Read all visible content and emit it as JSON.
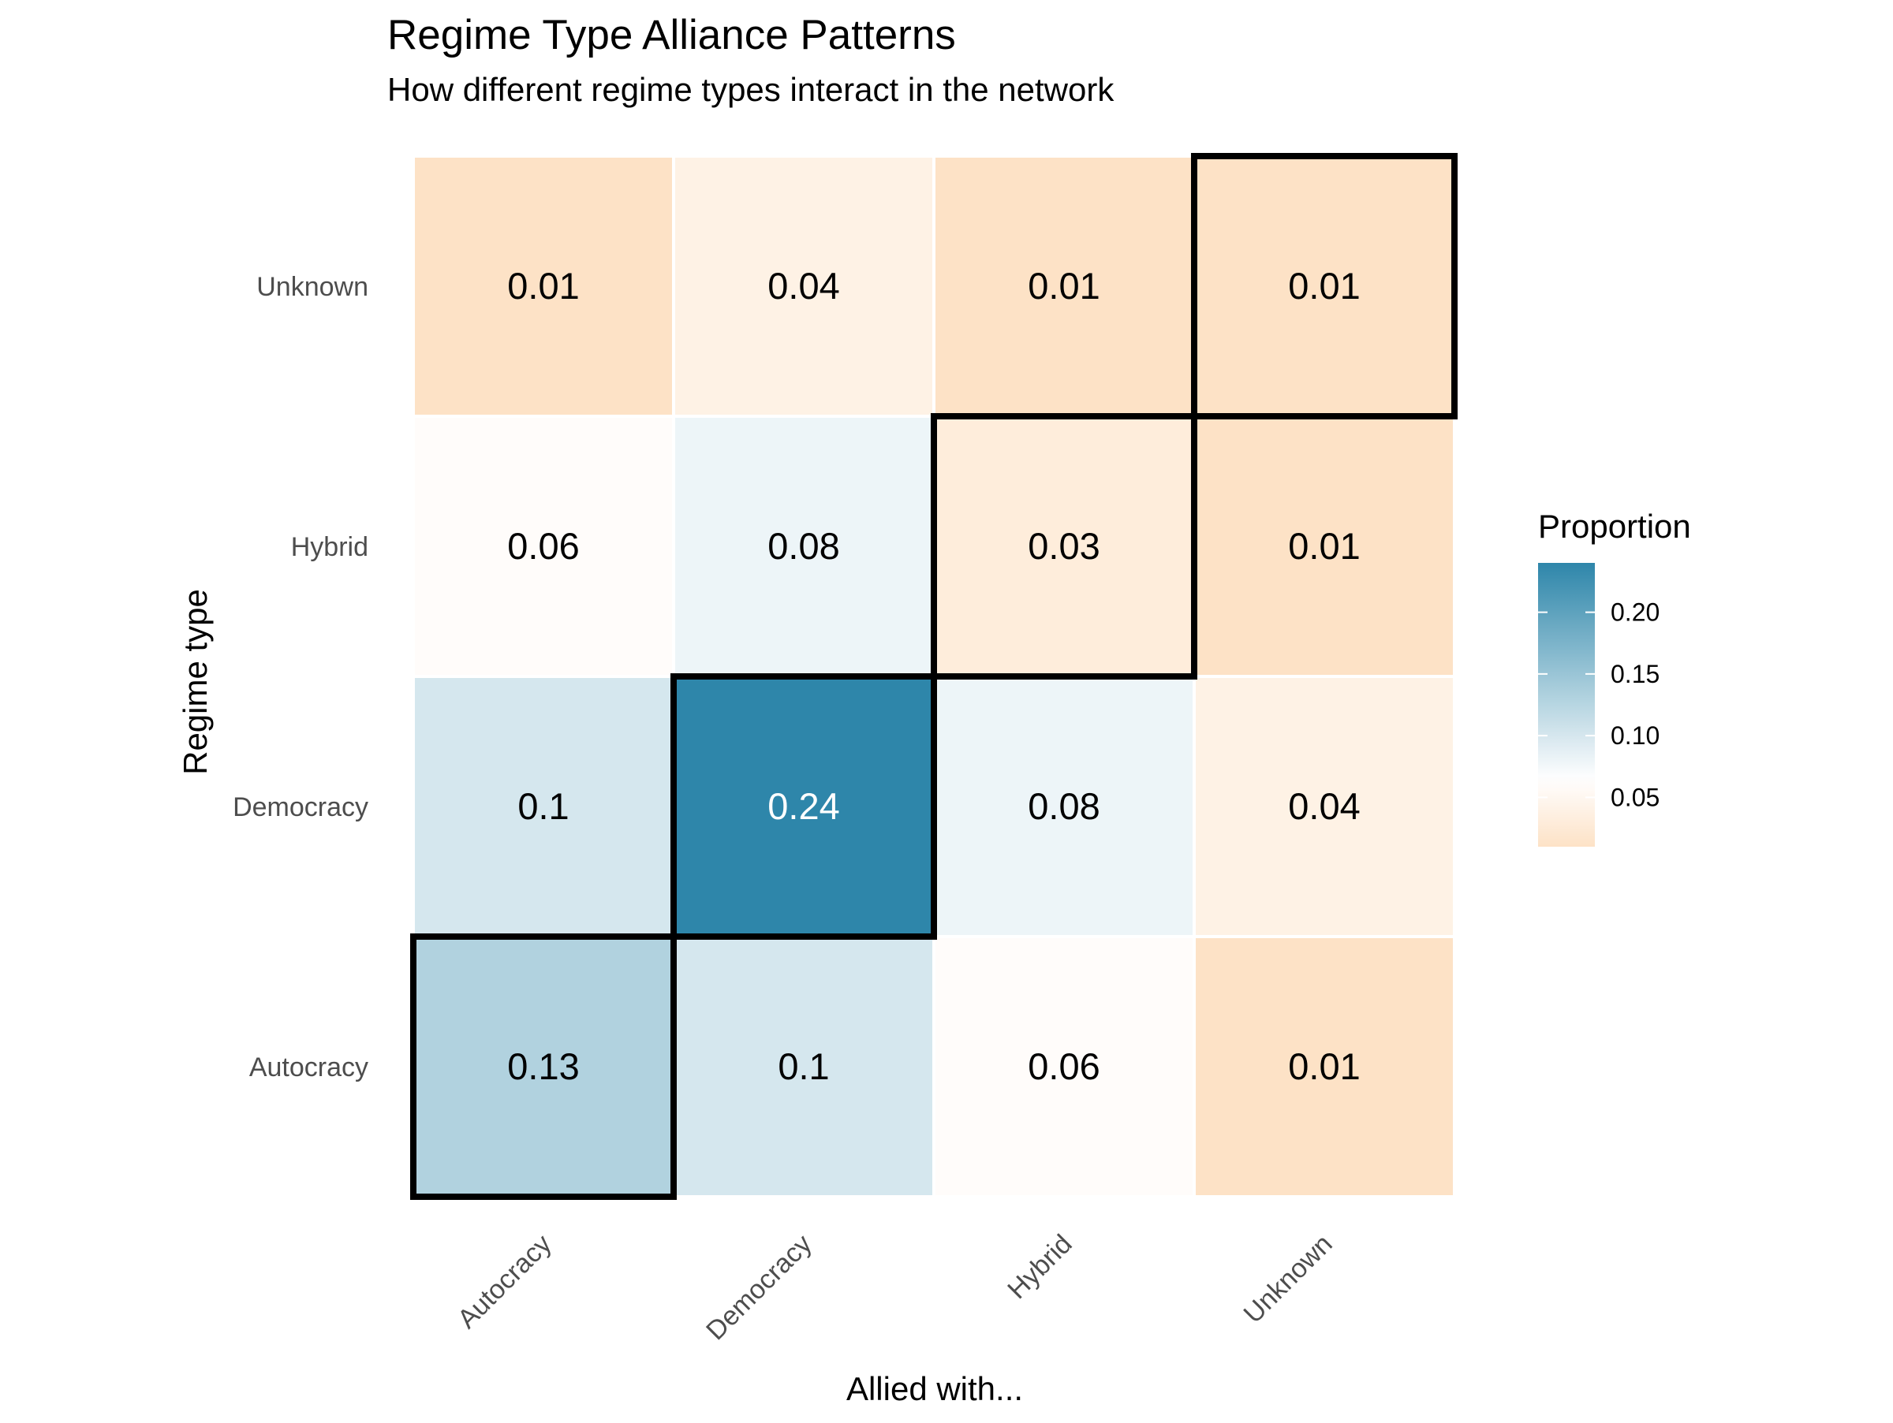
{
  "chart_data": {
    "type": "heatmap",
    "title": "Regime Type Alliance Patterns",
    "subtitle": "How different regime types interact in the network",
    "xlabel": "Allied with...",
    "ylabel": "Regime type",
    "x_categories": [
      "Autocracy",
      "Democracy",
      "Hybrid",
      "Unknown"
    ],
    "y_categories": [
      "Autocracy",
      "Democracy",
      "Hybrid",
      "Unknown"
    ],
    "values": [
      [
        0.13,
        0.1,
        0.06,
        0.01
      ],
      [
        0.1,
        0.24,
        0.08,
        0.04
      ],
      [
        0.06,
        0.08,
        0.03,
        0.01
      ],
      [
        0.01,
        0.04,
        0.01,
        0.01
      ]
    ],
    "value_labels": [
      [
        "0.13",
        "0.1",
        "0.06",
        "0.01"
      ],
      [
        "0.1",
        "0.24",
        "0.08",
        "0.04"
      ],
      [
        "0.06",
        "0.08",
        "0.03",
        "0.01"
      ],
      [
        "0.01",
        "0.04",
        "0.01",
        "0.01"
      ]
    ],
    "highlight": "diagonal",
    "legend": {
      "title": "Proportion",
      "placement": "right",
      "ticks": [
        0.05,
        0.1,
        0.15,
        0.2
      ],
      "tick_labels": [
        "0.05",
        "0.10",
        "0.15",
        "0.20"
      ],
      "range": [
        0.01,
        0.24
      ],
      "midpoint": 0.065
    },
    "colors": {
      "low": "#fde2c6",
      "mid": "#ffffff",
      "high": "#2e86aa",
      "highlight_border": "#000000"
    },
    "grid": false
  }
}
